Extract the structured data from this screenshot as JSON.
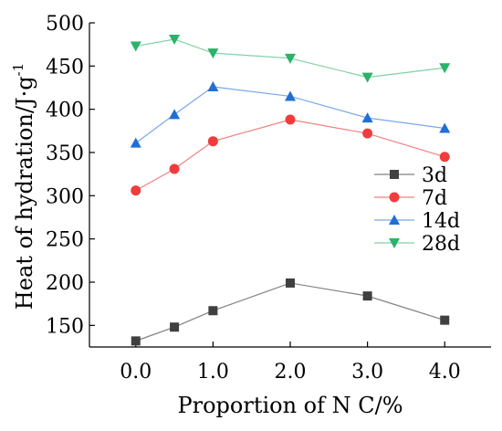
{
  "chart_data": {
    "type": "line",
    "xlabel": "Proportion of N C/%",
    "ylabel_main": "Heat of hydration/J·g",
    "ylabel_sup": "-1",
    "xlim": [
      -0.6,
      4.6
    ],
    "ylim": [
      125,
      500
    ],
    "xticks": [
      0,
      1,
      2,
      3,
      4
    ],
    "xtick_labels": [
      "0.0",
      "1.0",
      "2.0",
      "3.0",
      "4.0"
    ],
    "yticks": [
      150,
      200,
      250,
      300,
      350,
      400,
      450,
      500
    ],
    "ytick_labels": [
      "150",
      "200",
      "250",
      "300",
      "350",
      "400",
      "450",
      "500"
    ],
    "x": [
      0,
      0.5,
      1,
      2,
      3,
      4
    ],
    "legend_position": "center-right",
    "series": [
      {
        "name": "3d",
        "marker": "square",
        "color": "#404040",
        "line_color": "#808080",
        "values": [
          132,
          148,
          167,
          199,
          184,
          156
        ]
      },
      {
        "name": "7d",
        "marker": "circle",
        "color": "#f03c3c",
        "line_color": "#f08080",
        "values": [
          306,
          331,
          363,
          388,
          372,
          345
        ]
      },
      {
        "name": "14d",
        "marker": "triangle-up",
        "color": "#1f6fd6",
        "line_color": "#7aa8e8",
        "values": [
          361,
          394,
          426,
          415,
          390,
          378
        ]
      },
      {
        "name": "28d",
        "marker": "triangle-down",
        "color": "#2ab36a",
        "line_color": "#7fd1a3",
        "values": [
          473,
          481,
          465,
          459,
          437,
          448
        ]
      }
    ]
  }
}
